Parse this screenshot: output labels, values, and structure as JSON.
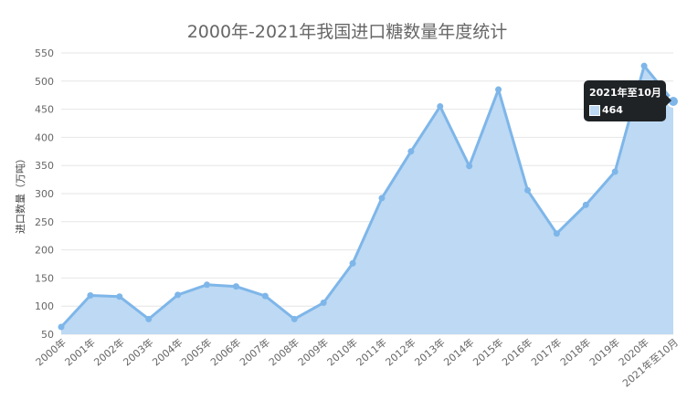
{
  "chart_data": {
    "type": "area",
    "title": "2000年-2021年我国进口糖数量年度统计",
    "ylabel": "进口数量（万吨）",
    "ylim": [
      50,
      550
    ],
    "yticks": [
      50,
      100,
      150,
      200,
      250,
      300,
      350,
      400,
      450,
      500,
      550
    ],
    "grid": true,
    "categories": [
      "2000年",
      "2001年",
      "2002年",
      "2003年",
      "2004年",
      "2005年",
      "2006年",
      "2007年",
      "2008年",
      "2009年",
      "2010年",
      "2011年",
      "2012年",
      "2013年",
      "2014年",
      "2015年",
      "2016年",
      "2017年",
      "2018年",
      "2019年",
      "2020年",
      "2021年至10月"
    ],
    "series": [
      {
        "values": [
          63,
          119,
          117,
          77,
          120,
          138,
          135,
          118,
          77,
          106,
          176,
          292,
          375,
          455,
          349,
          485,
          306,
          229,
          280,
          339,
          527,
          464
        ]
      }
    ],
    "colors": {
      "line": "#7eb6e9",
      "fill": "#bdd9f3",
      "grid": "#e6e6e6",
      "text": "#666666"
    }
  },
  "tooltip": {
    "title": "2021年至10月",
    "value": "464"
  }
}
